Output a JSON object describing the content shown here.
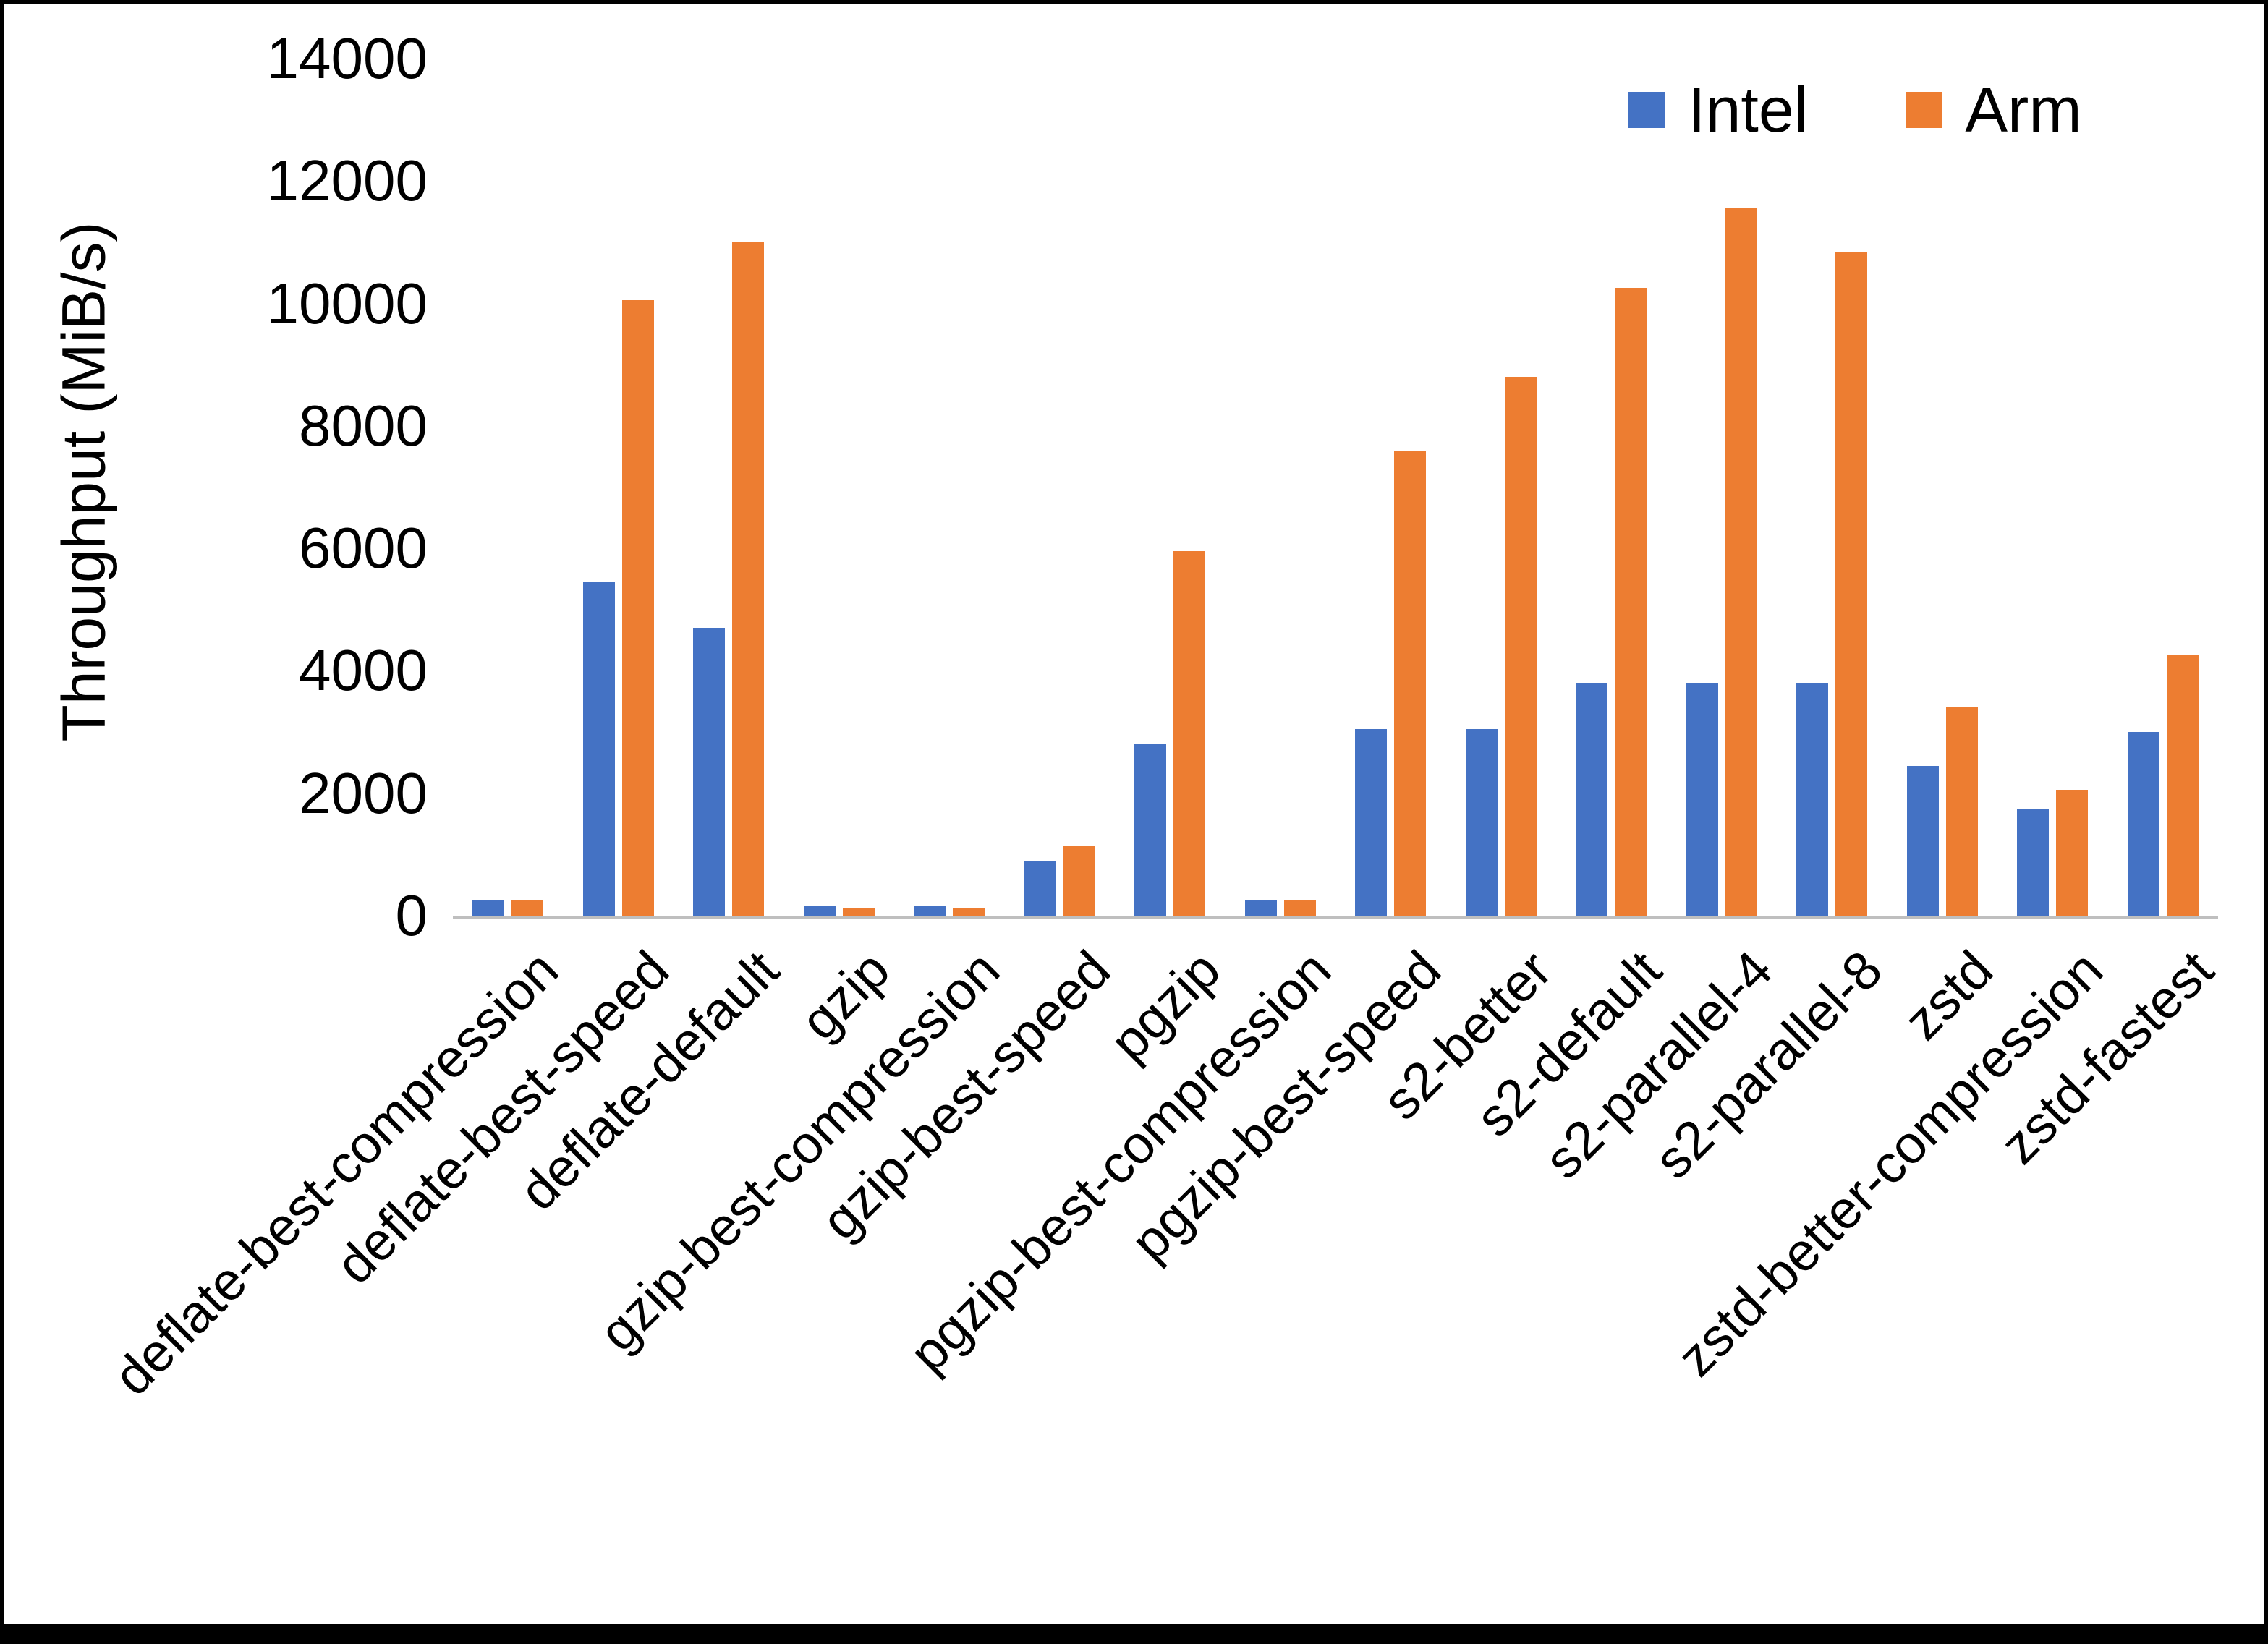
{
  "chart_data": {
    "type": "bar",
    "title": "",
    "xlabel": "",
    "ylabel": "Throughput (MiB/s)",
    "ylim": [
      0,
      14000
    ],
    "yticks": [
      0,
      2000,
      4000,
      6000,
      8000,
      10000,
      12000,
      14000
    ],
    "grid": false,
    "legend_position": "top-right",
    "categories": [
      "deflate-best-compression",
      "deflate-best-speed",
      "deflate-default",
      "gzip",
      "gzip-best-compression",
      "gzip-best-speed",
      "pgzip",
      "pgzip-best-compression",
      "pgzip-best-speed",
      "s2-better",
      "s2-default",
      "s2-parallel-4",
      "s2-parallel-8",
      "zstd",
      "zstd-better-compression",
      "zstd-fastest"
    ],
    "series": [
      {
        "name": "Intel",
        "color": "#4472c4",
        "values": [
          250,
          5450,
          4700,
          150,
          150,
          900,
          2800,
          250,
          3050,
          3050,
          3800,
          3800,
          3800,
          2450,
          1750,
          3000
        ]
      },
      {
        "name": "Arm",
        "color": "#ed7d31",
        "values": [
          250,
          10050,
          11000,
          130,
          130,
          1150,
          5950,
          250,
          7600,
          8800,
          10250,
          11550,
          10850,
          3400,
          2050,
          4250
        ]
      }
    ]
  }
}
